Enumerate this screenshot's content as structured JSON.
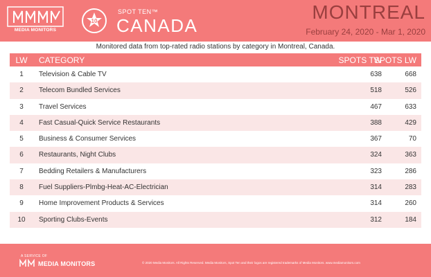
{
  "brand": {
    "logo_text": "MEDIA MONITORS",
    "service_text": "A SERVICE OF",
    "footer_logo_text": "MEDIA MONITORS"
  },
  "header": {
    "badge_number": "10",
    "spot_ten": "SPOT TEN™",
    "country": "CANADA",
    "city": "MONTREAL",
    "date_range": "February 24, 2020 - Mar 1, 2020"
  },
  "subtitle": "Monitored data from top-rated radio stations by category in Montreal, Canada.",
  "table": {
    "headers": {
      "lw": "LW",
      "category": "CATEGORY",
      "spots_tw": "SPOTS TW",
      "spots_lw": "SPOTS LW"
    },
    "rows": [
      {
        "lw": "1",
        "category": "Television & Cable TV",
        "spots_tw": "638",
        "spots_lw": "668"
      },
      {
        "lw": "2",
        "category": "Telecom Bundled Services",
        "spots_tw": "518",
        "spots_lw": "526"
      },
      {
        "lw": "3",
        "category": "Travel Services",
        "spots_tw": "467",
        "spots_lw": "633"
      },
      {
        "lw": "4",
        "category": "Fast Casual-Quick Service Restaurants",
        "spots_tw": "388",
        "spots_lw": "429"
      },
      {
        "lw": "5",
        "category": "Business & Consumer Services",
        "spots_tw": "367",
        "spots_lw": "70"
      },
      {
        "lw": "6",
        "category": "Restaurants, Night Clubs",
        "spots_tw": "324",
        "spots_lw": "363"
      },
      {
        "lw": "7",
        "category": "Bedding Retailers & Manufacturers",
        "spots_tw": "323",
        "spots_lw": "286"
      },
      {
        "lw": "8",
        "category": "Fuel Suppliers-Plmbg-Heat-AC-Electrician",
        "spots_tw": "314",
        "spots_lw": "283"
      },
      {
        "lw": "9",
        "category": "Home Improvement Products & Services",
        "spots_tw": "314",
        "spots_lw": "260"
      },
      {
        "lw": "10",
        "category": "Sporting Clubs-Events",
        "spots_tw": "312",
        "spots_lw": "184"
      }
    ]
  },
  "footer": {
    "copyright": "© 2020 Media Monitors. All Rights Reserved. Media Monitors, Spot Ten and their logos are registered trademarks of Media Monitors. www.mediamonitors.com"
  },
  "colors": {
    "accent": "#f47a7a",
    "dark_accent": "#9a3f3f",
    "row_alt": "#fae6e6"
  }
}
